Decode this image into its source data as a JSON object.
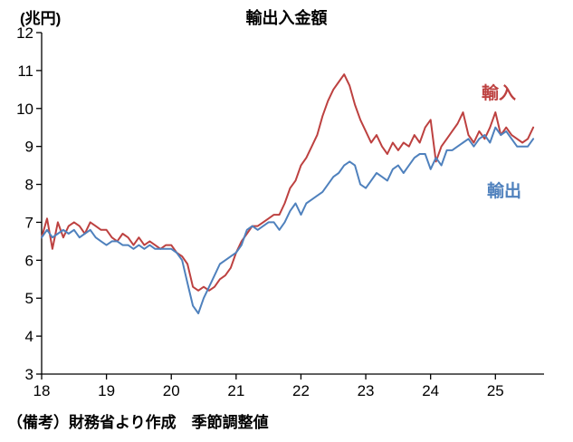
{
  "title": "輸出入金額",
  "y_unit_label": "(兆円)",
  "footnote": "（備考）財務省より作成　季節調整値",
  "chart_data": {
    "type": "line",
    "title": "輸出入金額",
    "y_unit": "兆円",
    "x_axis_note": "years 2018-2025 (monthly, seasonally adjusted)",
    "x_start_year": 2018,
    "x_step_months": 1,
    "x_range": [
      2018,
      2025.75
    ],
    "y_range": [
      3,
      12
    ],
    "grid": false,
    "legend_position": "inline-right",
    "x_ticks": [
      {
        "value": 2018,
        "label": "18"
      },
      {
        "value": 2019,
        "label": "19"
      },
      {
        "value": 2020,
        "label": "20"
      },
      {
        "value": 2021,
        "label": "21"
      },
      {
        "value": 2022,
        "label": "22"
      },
      {
        "value": 2023,
        "label": "23"
      },
      {
        "value": 2024,
        "label": "24"
      },
      {
        "value": 2025,
        "label": "25"
      }
    ],
    "y_ticks": [
      3,
      4,
      5,
      6,
      7,
      8,
      9,
      10,
      11,
      12
    ],
    "series": [
      {
        "name": "輸入",
        "color": "#bd4140",
        "values": [
          6.6,
          7.1,
          6.3,
          7.0,
          6.6,
          6.9,
          7.0,
          6.9,
          6.7,
          7.0,
          6.9,
          6.8,
          6.8,
          6.6,
          6.5,
          6.7,
          6.6,
          6.4,
          6.6,
          6.4,
          6.5,
          6.4,
          6.3,
          6.4,
          6.4,
          6.2,
          6.1,
          5.9,
          5.3,
          5.2,
          5.3,
          5.2,
          5.3,
          5.5,
          5.6,
          5.8,
          6.2,
          6.5,
          6.7,
          6.9,
          6.9,
          7.0,
          7.1,
          7.2,
          7.2,
          7.5,
          7.9,
          8.1,
          8.5,
          8.7,
          9.0,
          9.3,
          9.8,
          10.2,
          10.5,
          10.7,
          10.9,
          10.6,
          10.1,
          9.7,
          9.4,
          9.1,
          9.3,
          9.0,
          8.8,
          9.1,
          8.9,
          9.1,
          9.0,
          9.3,
          9.1,
          9.5,
          9.7,
          8.6,
          9.0,
          9.2,
          9.4,
          9.6,
          9.9,
          9.3,
          9.1,
          9.4,
          9.2,
          9.5,
          9.9,
          9.3,
          9.5,
          9.3,
          9.2,
          9.1,
          9.2,
          9.5
        ]
      },
      {
        "name": "輸出",
        "color": "#4f81bd",
        "values": [
          6.6,
          6.8,
          6.6,
          6.7,
          6.8,
          6.7,
          6.8,
          6.6,
          6.7,
          6.8,
          6.6,
          6.5,
          6.4,
          6.5,
          6.5,
          6.4,
          6.4,
          6.3,
          6.4,
          6.3,
          6.4,
          6.3,
          6.3,
          6.3,
          6.3,
          6.2,
          6.0,
          5.4,
          4.8,
          4.6,
          5.0,
          5.3,
          5.6,
          5.9,
          6.0,
          6.1,
          6.2,
          6.4,
          6.8,
          6.9,
          6.8,
          6.9,
          7.0,
          7.0,
          6.8,
          7.0,
          7.3,
          7.5,
          7.2,
          7.5,
          7.6,
          7.7,
          7.8,
          8.0,
          8.2,
          8.3,
          8.5,
          8.6,
          8.5,
          8.0,
          7.9,
          8.1,
          8.3,
          8.2,
          8.1,
          8.4,
          8.5,
          8.3,
          8.5,
          8.7,
          8.8,
          8.8,
          8.4,
          8.7,
          8.5,
          8.9,
          8.9,
          9.0,
          9.1,
          9.2,
          9.0,
          9.2,
          9.3,
          9.1,
          9.5,
          9.3,
          9.4,
          9.2,
          9.0,
          9.0,
          9.0,
          9.2
        ]
      }
    ]
  }
}
